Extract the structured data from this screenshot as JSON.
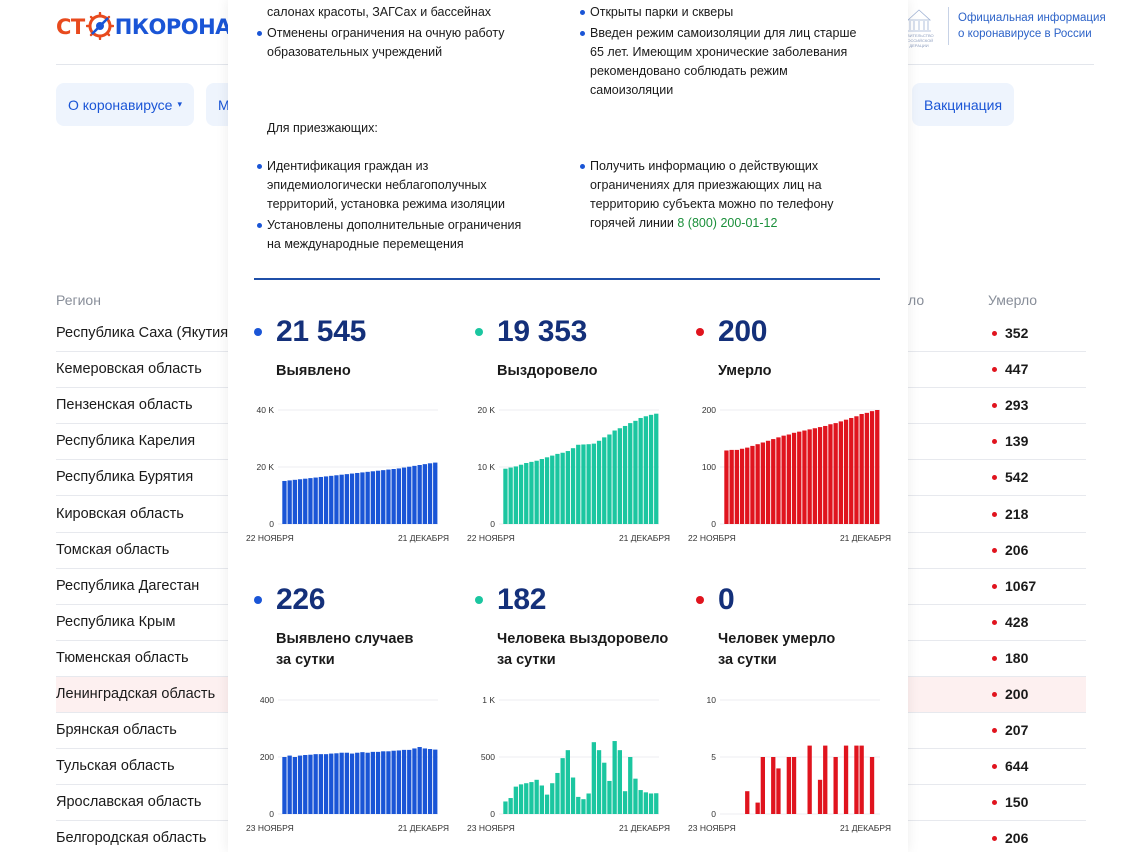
{
  "logo": {
    "part1": "СТ",
    "part2": "ПКОРОНАВИ"
  },
  "gov": {
    "emblem_lines": [
      "АВИТЕЛЬСТВО",
      "РОССИЙСКОЙ",
      "ДЕРАЦИИ"
    ],
    "text_line1": "Официальная информация",
    "text_line2": "о коронавирусе в России"
  },
  "nav": [
    {
      "label": "О коронавирусе",
      "caret": "▾"
    },
    {
      "label": "М"
    },
    {
      "label": "Вакцинация"
    }
  ],
  "table": {
    "col_region": "Регион",
    "col_died_partial": "ло",
    "col_died": "Умерло",
    "rows": [
      {
        "region": "Республика Саха (Якутия)",
        "died": "352"
      },
      {
        "region": "Кемеровская область",
        "died": "447"
      },
      {
        "region": "Пензенская область",
        "died": "293"
      },
      {
        "region": "Республика Карелия",
        "died": "139"
      },
      {
        "region": "Республика Бурятия",
        "died": "542"
      },
      {
        "region": "Кировская область",
        "died": "218"
      },
      {
        "region": "Томская область",
        "died": "206"
      },
      {
        "region": "Республика Дагестан",
        "died": "1067"
      },
      {
        "region": "Республика Крым",
        "died": "428"
      },
      {
        "region": "Тюменская область",
        "died": "180"
      },
      {
        "region": "Ленинградская область",
        "died": "200"
      },
      {
        "region": "Брянская область",
        "died": "207"
      },
      {
        "region": "Тульская область",
        "died": "644"
      },
      {
        "region": "Ярославская область",
        "died": "150"
      },
      {
        "region": "Белгородская область",
        "died": "206"
      }
    ]
  },
  "modal": {
    "restrictions_left": [
      {
        "lines": [
          "салонах красоты, ЗАГСах и бассейнах"
        ]
      },
      {
        "lines": [
          "Отменены ограничения на очную работу",
          "образовательных учреждений"
        ]
      }
    ],
    "restrictions_right": [
      {
        "lines": [
          "Открыты парки и скверы"
        ]
      },
      {
        "lines": [
          "Введен режим самоизоляции для лиц старше",
          "65 лет. Имеющим хронические заболевания",
          "рекомендовано соблюдать режим",
          "самоизоляции"
        ]
      }
    ],
    "arrivals_heading": "Для приезжающих:",
    "arrivals_left": [
      {
        "lines": [
          "Идентификация граждан из",
          "эпидемиологически неблагополучных",
          "территорий, установка режима изоляции"
        ]
      },
      {
        "lines": [
          "Установлены дополнительные ограничения",
          "на международные перемещения"
        ]
      }
    ],
    "arrivals_right": {
      "lines": [
        "Получить информацию о действующих",
        "ограничениях для приезжающих лиц на",
        "территорию субъекта можно по телефону"
      ],
      "last_text": "горячей линии ",
      "phone": "8 (800) 200-01-12"
    },
    "stats": [
      {
        "value": "21 545",
        "label1": "Выявлено",
        "label2": "",
        "color": "#1a55d6"
      },
      {
        "value": "19 353",
        "label1": "Выздоровело",
        "label2": "",
        "color": "#1bc6a0"
      },
      {
        "value": "200",
        "label1": "Умерло",
        "label2": "",
        "color": "#e0141e"
      },
      {
        "value": "226",
        "label1": "Выявлено случаев",
        "label2": "за сутки",
        "color": "#1a55d6"
      },
      {
        "value": "182",
        "label1": "Человека выздоровело",
        "label2": "за сутки",
        "color": "#1bc6a0"
      },
      {
        "value": "0",
        "label1": "Человек умерло",
        "label2": "за сутки",
        "color": "#e0141e"
      }
    ]
  },
  "chart_data": [
    {
      "type": "bar",
      "color": "#1a55d6",
      "ymax": 40000,
      "ticks": [
        {
          "v": 0,
          "label": "0"
        },
        {
          "v": 20000,
          "label": "20 K"
        },
        {
          "v": 40000,
          "label": "40 K"
        }
      ],
      "x_start": "22 НОЯБРЯ",
      "x_end": "21 ДЕКАБРЯ",
      "values": [
        15100,
        15300,
        15500,
        15700,
        15900,
        16100,
        16300,
        16500,
        16700,
        16900,
        17100,
        17300,
        17500,
        17700,
        17900,
        18100,
        18300,
        18500,
        18700,
        18900,
        19100,
        19300,
        19500,
        19800,
        20100,
        20400,
        20700,
        21000,
        21300,
        21545
      ]
    },
    {
      "type": "bar",
      "color": "#1bc6a0",
      "ymax": 20000,
      "ticks": [
        {
          "v": 0,
          "label": "0"
        },
        {
          "v": 10000,
          "label": "10 K"
        },
        {
          "v": 20000,
          "label": "20 K"
        }
      ],
      "x_start": "22 НОЯБРЯ",
      "x_end": "21 ДЕКАБРЯ",
      "values": [
        9700,
        9900,
        10100,
        10400,
        10700,
        10900,
        11100,
        11400,
        11700,
        12000,
        12300,
        12500,
        12800,
        13300,
        13900,
        13950,
        14000,
        14100,
        14600,
        15200,
        15700,
        16400,
        16800,
        17200,
        17700,
        18100,
        18600,
        18900,
        19150,
        19353
      ]
    },
    {
      "type": "bar",
      "color": "#e0141e",
      "ymax": 200,
      "ticks": [
        {
          "v": 0,
          "label": "0"
        },
        {
          "v": 100,
          "label": "100"
        },
        {
          "v": 200,
          "label": "200"
        }
      ],
      "x_start": "22 НОЯБРЯ",
      "x_end": "21 ДЕКАБРЯ",
      "values": [
        129,
        130,
        130,
        132,
        134,
        137,
        140,
        143,
        146,
        149,
        152,
        155,
        157,
        160,
        162,
        164,
        166,
        168,
        170,
        172,
        175,
        177,
        180,
        183,
        186,
        189,
        193,
        195,
        198,
        200
      ]
    },
    {
      "type": "bar",
      "color": "#1a55d6",
      "ymax": 400,
      "ticks": [
        {
          "v": 0,
          "label": "0"
        },
        {
          "v": 200,
          "label": "200"
        },
        {
          "v": 400,
          "label": "400"
        }
      ],
      "x_start": "23 НОЯБРЯ",
      "x_end": "21 ДЕКАБРЯ",
      "values": [
        200,
        205,
        200,
        205,
        207,
        208,
        210,
        210,
        210,
        212,
        213,
        215,
        215,
        212,
        215,
        217,
        215,
        218,
        218,
        220,
        220,
        222,
        223,
        225,
        225,
        230,
        235,
        230,
        228,
        226
      ]
    },
    {
      "type": "bar",
      "color": "#1bc6a0",
      "ymax": 1000,
      "ticks": [
        {
          "v": 0,
          "label": "0"
        },
        {
          "v": 500,
          "label": "500"
        },
        {
          "v": 1000,
          "label": "1 K"
        }
      ],
      "x_start": "23 НОЯБРЯ",
      "x_end": "21 ДЕКАБРЯ",
      "values": [
        110,
        140,
        240,
        260,
        270,
        280,
        300,
        250,
        170,
        270,
        360,
        490,
        560,
        320,
        150,
        130,
        180,
        630,
        560,
        450,
        290,
        640,
        560,
        200,
        500,
        310,
        210,
        190,
        180,
        182
      ]
    },
    {
      "type": "bar",
      "color": "#e0141e",
      "ymax": 10,
      "ticks": [
        {
          "v": 0,
          "label": "0"
        },
        {
          "v": 5,
          "label": "5"
        },
        {
          "v": 10,
          "label": "10"
        }
      ],
      "x_start": "23 НОЯБРЯ",
      "x_end": "21 ДЕКАБРЯ",
      "values": [
        0,
        0,
        0,
        0,
        2,
        0,
        1,
        5,
        0,
        5,
        4,
        0,
        5,
        5,
        0,
        0,
        6,
        0,
        3,
        6,
        0,
        5,
        0,
        6,
        0,
        6,
        6,
        0,
        5,
        0
      ]
    }
  ]
}
